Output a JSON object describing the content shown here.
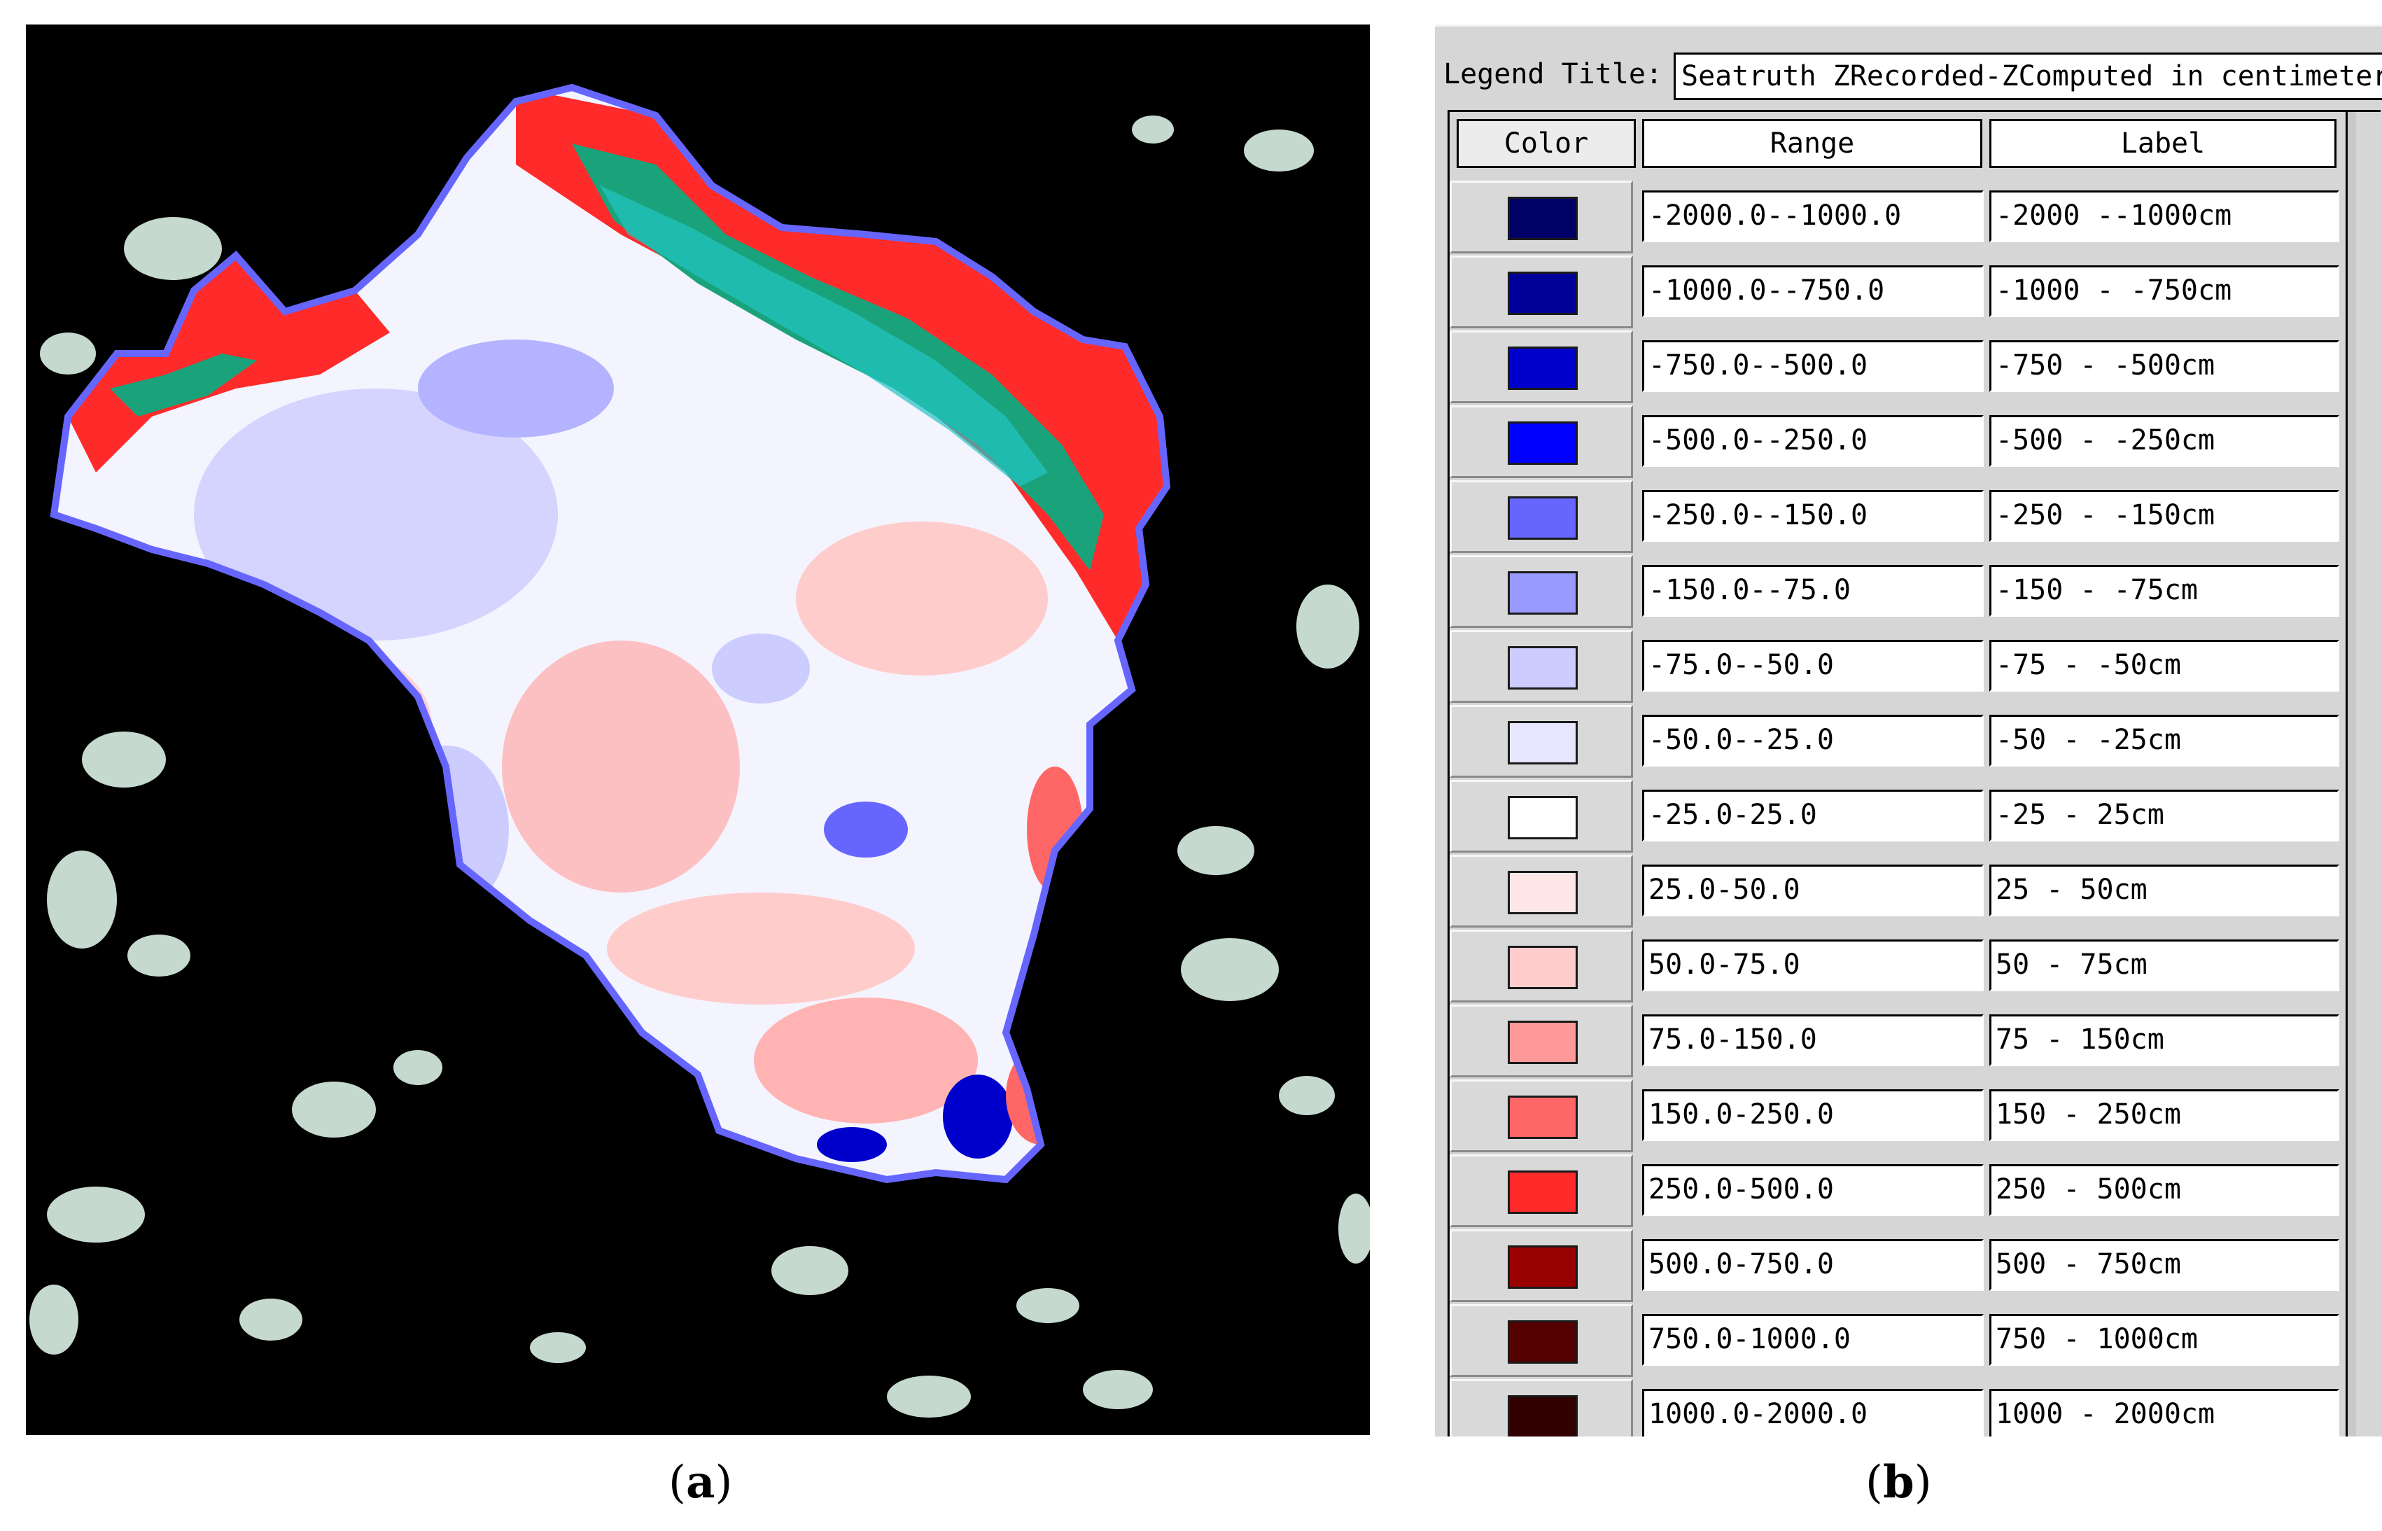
{
  "captions": {
    "a": "a",
    "b": "b"
  },
  "map": {
    "background": "#000000",
    "palette": {
      "deep_blue": "#0000cc",
      "mid_blue": "#6666ff",
      "light_blue": "#ccccff",
      "white": "#ffffff",
      "light_red": "#ffcccc",
      "mid_red": "#ff9999",
      "red": "#ff2a2a",
      "teal_land": "#1aa37a",
      "cloud": "#e8fff2"
    }
  },
  "legend_editor": {
    "title_label": "Legend Title:",
    "title_value": "Seatruth ZRecorded-ZComputed in centimeters",
    "headers": {
      "color": "Color",
      "range": "Range",
      "label": "Label"
    },
    "rows": [
      {
        "color": "#000066",
        "range": "-2000.0--1000.0",
        "label": "-2000 --1000cm"
      },
      {
        "color": "#000099",
        "range": "-1000.0--750.0",
        "label": "-1000 - -750cm"
      },
      {
        "color": "#0000cc",
        "range": "-750.0--500.0",
        "label": "-750 - -500cm"
      },
      {
        "color": "#0000ff",
        "range": "-500.0--250.0",
        "label": "-500 - -250cm"
      },
      {
        "color": "#6666ff",
        "range": "-250.0--150.0",
        "label": "-250 - -150cm"
      },
      {
        "color": "#9999ff",
        "range": "-150.0--75.0",
        "label": "-150 - -75cm"
      },
      {
        "color": "#ccccff",
        "range": "-75.0--50.0",
        "label": "-75 - -50cm"
      },
      {
        "color": "#e6e6ff",
        "range": "-50.0--25.0",
        "label": "-50 - -25cm"
      },
      {
        "color": "#ffffff",
        "range": "-25.0-25.0",
        "label": "-25 - 25cm"
      },
      {
        "color": "#ffe6e6",
        "range": "25.0-50.0",
        "label": "25 - 50cm"
      },
      {
        "color": "#ffcccc",
        "range": "50.0-75.0",
        "label": "50 - 75cm"
      },
      {
        "color": "#ff9999",
        "range": "75.0-150.0",
        "label": "75 - 150cm"
      },
      {
        "color": "#ff6666",
        "range": "150.0-250.0",
        "label": "150 - 250cm"
      },
      {
        "color": "#ff2a2a",
        "range": "250.0-500.0",
        "label": "250 - 500cm"
      },
      {
        "color": "#990000",
        "range": "500.0-750.0",
        "label": "500 - 750cm"
      },
      {
        "color": "#550000",
        "range": "750.0-1000.0",
        "label": "750 - 1000cm"
      },
      {
        "color": "#330000",
        "range": "1000.0-2000.0",
        "label": "1000 - 2000cm"
      }
    ]
  }
}
